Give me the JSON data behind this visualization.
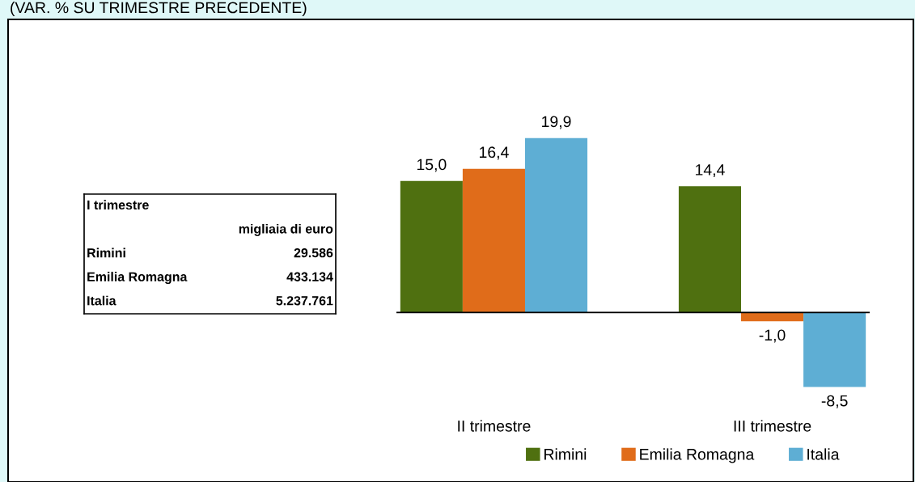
{
  "chart_data": [
    {
      "type": "other",
      "title": "I trimestre",
      "subtitle": "migliaia di euro",
      "categories": [
        "Rimini",
        "Emilia Romagna",
        "Italia"
      ],
      "annotations": [
        "29.586",
        "433.134",
        "5.237.761"
      ]
    },
    {
      "type": "bar",
      "title": "(VAR. % SU TRIMESTRE PRECEDENTE)",
      "categories": [
        "II trimestre",
        "III trimestre"
      ],
      "series": [
        {
          "name": "Rimini",
          "color": "#4f7010",
          "values": [
            15.0,
            14.4
          ],
          "value_labels": [
            "15,0",
            "14,4"
          ]
        },
        {
          "name": "Emilia Romagna",
          "color": "#e06c1a",
          "values": [
            16.4,
            -1.0
          ],
          "value_labels": [
            "16,4",
            "-1,0"
          ]
        },
        {
          "name": "Italia",
          "color": "#5eaed4",
          "values": [
            19.9,
            -8.5
          ],
          "value_labels": [
            "19,9",
            "-8,5"
          ]
        }
      ],
      "legend": "bottom right"
    }
  ]
}
